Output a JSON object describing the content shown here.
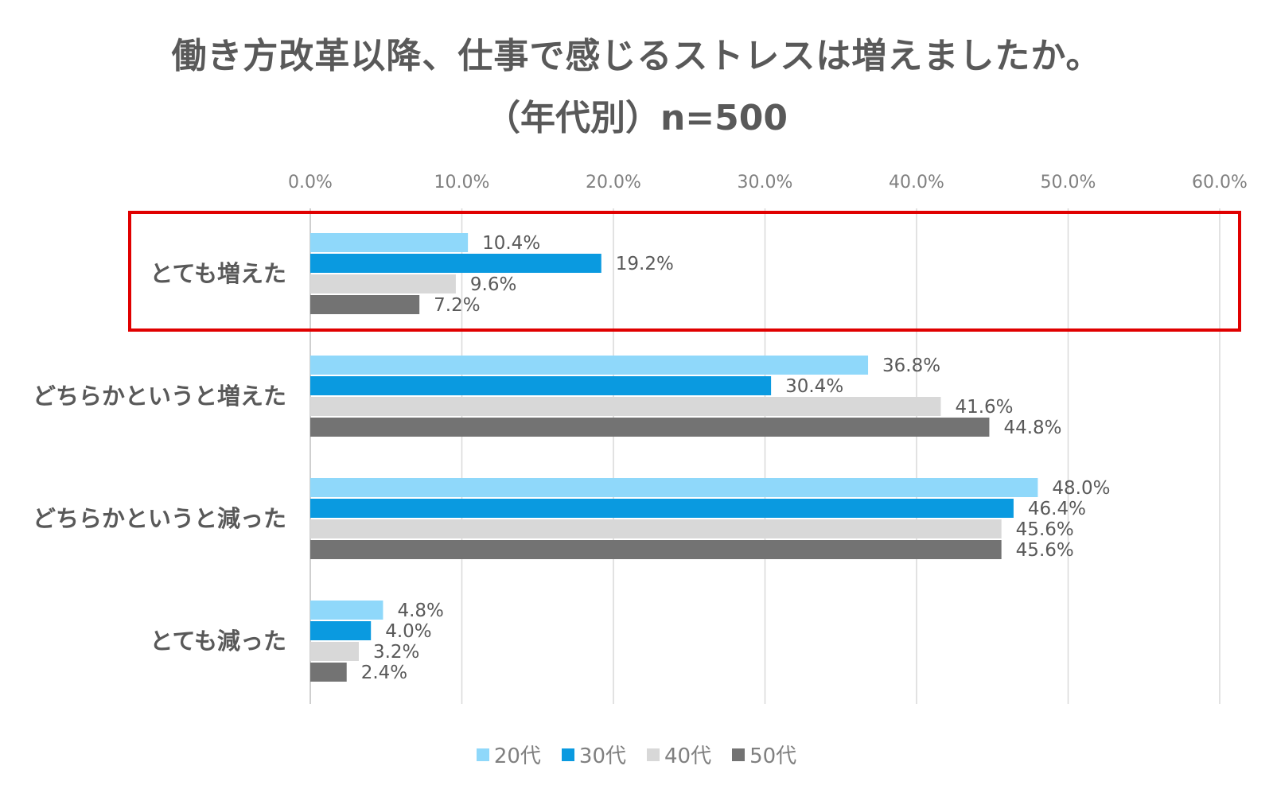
{
  "chart_data": {
    "type": "bar",
    "orientation": "horizontal",
    "title": "働き方改革以降、仕事で感じるストレスは増えましたか。",
    "subtitle": "（年代別）n=500",
    "categories": [
      "とても増えた",
      "どちらかというと増えた",
      "どちらかというと減った",
      "とても減った"
    ],
    "series": [
      {
        "name": "20代",
        "color": "#8fd8fa",
        "values": [
          10.4,
          36.8,
          48.0,
          4.8
        ],
        "labels": [
          "10.4%",
          "36.8%",
          "48.0%",
          "4.8%"
        ]
      },
      {
        "name": "30代",
        "color": "#0a9ae0",
        "values": [
          19.2,
          30.4,
          46.4,
          4.0
        ],
        "labels": [
          "19.2%",
          "30.4%",
          "46.4%",
          "4.0%"
        ]
      },
      {
        "name": "40代",
        "color": "#d8d8d8",
        "values": [
          9.6,
          41.6,
          45.6,
          3.2
        ],
        "labels": [
          "9.6%",
          "41.6%",
          "45.6%",
          "3.2%"
        ]
      },
      {
        "name": "50代",
        "color": "#737373",
        "values": [
          7.2,
          44.8,
          45.6,
          2.4
        ],
        "labels": [
          "7.2%",
          "44.8%",
          "45.6%",
          "2.4%"
        ]
      }
    ],
    "xlim": [
      0,
      60
    ],
    "xticks": [
      "0.0%",
      "10.0%",
      "20.0%",
      "30.0%",
      "40.0%",
      "50.0%",
      "60.0%"
    ],
    "axis_position": "top",
    "grid": true,
    "legend_position": "bottom",
    "highlight": {
      "category": "とても増えた",
      "color": "#e00000"
    }
  }
}
